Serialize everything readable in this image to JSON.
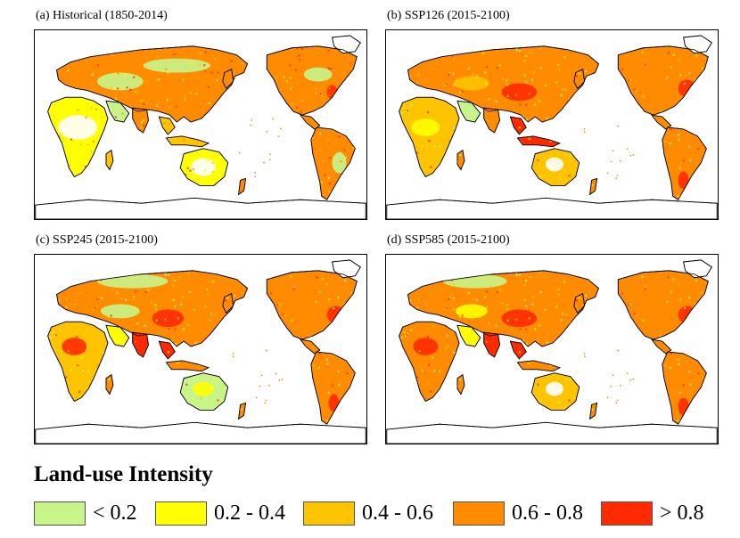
{
  "panels": [
    {
      "id": "a",
      "label": "(a) Historical (1850-2014)",
      "variant": "historical"
    },
    {
      "id": "b",
      "label": "(b) SSP126 (2015-2100)",
      "variant": "ssp126"
    },
    {
      "id": "c",
      "label": "(c) SSP245 (2015-2100)",
      "variant": "ssp245"
    },
    {
      "id": "d",
      "label": "(d) SSP585 (2015-2100)",
      "variant": "ssp585"
    }
  ],
  "legend": {
    "title": "Land-use Intensity",
    "items": [
      {
        "label": "< 0.2",
        "color": "#c8f58a"
      },
      {
        "label": "0.2 - 0.4",
        "color": "#ffff00"
      },
      {
        "label": "0.4 - 0.6",
        "color": "#ffc400"
      },
      {
        "label": "0.6 - 0.8",
        "color": "#ff8c00"
      },
      {
        "label": "> 0.8",
        "color": "#ff2a00"
      }
    ]
  }
}
